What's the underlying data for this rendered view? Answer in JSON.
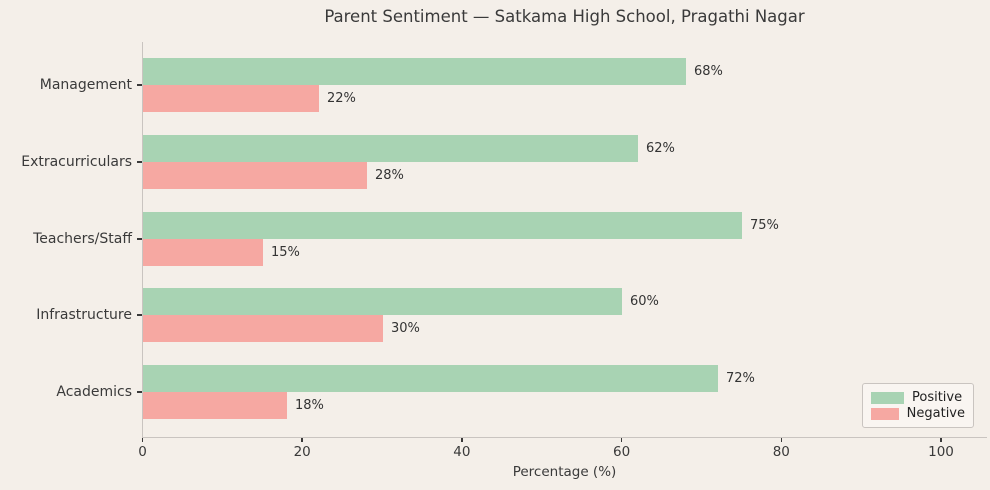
{
  "title": "Parent Sentiment — Satkama High School, Pragathi Nagar",
  "colors": {
    "background": "#f4efe9",
    "positive": "#a8d3b3",
    "negative": "#f6a8a2",
    "axis": "#c9c4c0",
    "text": "#3a3a3a"
  },
  "chart_data": {
    "type": "bar",
    "orientation": "horizontal",
    "title": "Parent Sentiment — Satkama High School, Pragathi Nagar",
    "categories_top_to_bottom": [
      "Management",
      "Extracurriculars",
      "Teachers/Staff",
      "Infrastructure",
      "Academics"
    ],
    "series": [
      {
        "name": "Positive",
        "color": "#a8d3b3",
        "values": [
          68,
          62,
          75,
          60,
          72
        ]
      },
      {
        "name": "Negative",
        "color": "#f6a8a2",
        "values": [
          22,
          28,
          15,
          30,
          18
        ]
      }
    ],
    "value_labels": [
      {
        "positive": "68%",
        "negative": "22%"
      },
      {
        "positive": "62%",
        "negative": "28%"
      },
      {
        "positive": "75%",
        "negative": "15%"
      },
      {
        "positive": "60%",
        "negative": "30%"
      },
      {
        "positive": "72%",
        "negative": "18%"
      }
    ],
    "xlabel": "Percentage (%)",
    "x_ticks": [
      0,
      20,
      40,
      60,
      80,
      100
    ],
    "xlim": [
      0,
      106
    ],
    "grid": false,
    "legend_position": "lower right"
  }
}
